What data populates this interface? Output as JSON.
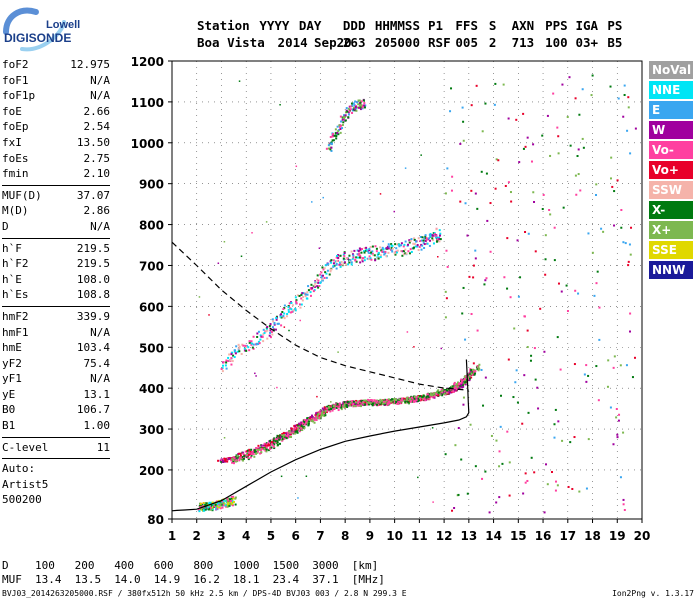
{
  "logo": {
    "line1": "Lowell",
    "line2": "DIGISONDE"
  },
  "header": {
    "labels": [
      "Station",
      "YYYY",
      "DAY",
      "DDD",
      "HHMMSS",
      "P1",
      "FFS",
      "S",
      "AXN",
      "PPS",
      "IGA",
      "PS"
    ],
    "values": [
      "Boa Vista",
      "2014",
      "Sep20",
      "263",
      "205000",
      "RSF",
      "005",
      "2",
      "713",
      "100",
      "03+",
      "B5"
    ]
  },
  "params": [
    {
      "type": "row",
      "label": "foF2",
      "value": "12.975"
    },
    {
      "type": "row",
      "label": "foF1",
      "value": "N/A"
    },
    {
      "type": "row",
      "label": "foF1p",
      "value": "N/A"
    },
    {
      "type": "row",
      "label": "foE",
      "value": "2.66"
    },
    {
      "type": "row",
      "label": "foEp",
      "value": "2.54"
    },
    {
      "type": "row",
      "label": "fxI",
      "value": "13.50"
    },
    {
      "type": "row",
      "label": "foEs",
      "value": "2.75"
    },
    {
      "type": "row",
      "label": "fmin",
      "value": "2.10"
    },
    {
      "type": "sep"
    },
    {
      "type": "row",
      "label": "MUF(D)",
      "value": "37.07"
    },
    {
      "type": "row",
      "label": "M(D)",
      "value": "2.86"
    },
    {
      "type": "row",
      "label": "D",
      "value": "N/A"
    },
    {
      "type": "sep"
    },
    {
      "type": "row",
      "label": "h`F",
      "value": "219.5"
    },
    {
      "type": "row",
      "label": "h`F2",
      "value": "219.5"
    },
    {
      "type": "row",
      "label": "h`E",
      "value": "108.0"
    },
    {
      "type": "row",
      "label": "h`Es",
      "value": "108.8"
    },
    {
      "type": "sep"
    },
    {
      "type": "row",
      "label": "hmF2",
      "value": "339.9"
    },
    {
      "type": "row",
      "label": "hmF1",
      "value": "N/A"
    },
    {
      "type": "row",
      "label": "hmE",
      "value": "103.4"
    },
    {
      "type": "row",
      "label": "yF2",
      "value": "75.4"
    },
    {
      "type": "row",
      "label": "yF1",
      "value": "N/A"
    },
    {
      "type": "row",
      "label": "yE",
      "value": "13.1"
    },
    {
      "type": "row",
      "label": "B0",
      "value": "106.7"
    },
    {
      "type": "row",
      "label": "B1",
      "value": "1.00"
    },
    {
      "type": "sep"
    },
    {
      "type": "row",
      "label": "C-level",
      "value": "11"
    },
    {
      "type": "sep"
    },
    {
      "type": "text",
      "text": "Auto:"
    },
    {
      "type": "text",
      "text": "Artist5"
    },
    {
      "type": "text",
      "text": "500200"
    }
  ],
  "legend": [
    {
      "label": "NoVal",
      "color": "#a0a0a0"
    },
    {
      "label": "NNE",
      "color": "#00e5f5"
    },
    {
      "label": "E",
      "color": "#3aa6f0"
    },
    {
      "label": "W",
      "color": "#a0009e"
    },
    {
      "label": "Vo-",
      "color": "#ff40a0"
    },
    {
      "label": "Vo+",
      "color": "#e8002a"
    },
    {
      "label": "SSW",
      "color": "#f5b3aa"
    },
    {
      "label": "X-",
      "color": "#007a10"
    },
    {
      "label": "X+",
      "color": "#7db850"
    },
    {
      "label": "SSE",
      "color": "#e0d800"
    },
    {
      "label": "NNW",
      "color": "#1a1a9a"
    }
  ],
  "chart_data": {
    "type": "scatter",
    "x_ticks": [
      "1",
      "2",
      "3",
      "4",
      "5",
      "6",
      "7",
      "8",
      "9",
      "10",
      "11",
      "12",
      "13",
      "14",
      "15",
      "16",
      "17",
      "18",
      "19",
      "20"
    ],
    "y_ticks": [
      "80",
      "200",
      "300",
      "400",
      "500",
      "600",
      "700",
      "800",
      "900",
      "1000",
      "1100",
      "1200"
    ],
    "xlim": [
      1,
      20
    ],
    "ylim": [
      80,
      1200
    ],
    "grid": true,
    "legend_position": "right",
    "traces": [
      {
        "mode": "O",
        "x": [
          2.9,
          3.5,
          4.2,
          5.0,
          5.6,
          6.0,
          6.5,
          7.0,
          7.5,
          8.0,
          8.5,
          9.0,
          9.5,
          10.0,
          10.5,
          11.0,
          11.5,
          12.0,
          12.3,
          12.6,
          12.9,
          13.1
        ],
        "y": [
          223,
          232,
          248,
          270,
          290,
          305,
          325,
          345,
          358,
          364,
          366,
          367,
          367,
          370,
          373,
          378,
          383,
          392,
          398,
          408,
          425,
          445
        ]
      },
      {
        "mode": "X",
        "x": [
          3.4,
          4.0,
          4.8,
          5.5,
          6.2,
          6.8,
          7.4,
          8.0,
          8.6,
          9.2,
          9.8,
          10.4,
          11.0,
          11.5,
          12.0,
          12.5,
          13.0,
          13.4
        ],
        "y": [
          225,
          236,
          255,
          280,
          305,
          330,
          352,
          362,
          366,
          367,
          368,
          372,
          378,
          385,
          395,
          410,
          432,
          458
        ]
      },
      {
        "mode": "Es",
        "x": [
          2.1,
          2.3,
          2.5,
          2.7,
          2.9,
          3.1,
          3.3,
          3.5
        ],
        "y": [
          110,
          112,
          113,
          115,
          118,
          121,
          124,
          128
        ]
      },
      {
        "mode": "multi",
        "x": [
          3.0,
          3.6,
          4.4,
          5.0,
          5.6,
          6.2,
          6.8,
          7.3,
          7.8,
          8.3,
          8.8,
          9.3,
          9.8,
          10.4,
          11.0,
          11.5,
          11.8
        ],
        "y": [
          455,
          490,
          520,
          550,
          590,
          620,
          660,
          695,
          715,
          725,
          730,
          733,
          738,
          745,
          755,
          768,
          782
        ]
      },
      {
        "mode": "multi2",
        "x": [
          7.3,
          7.6,
          7.9,
          8.2,
          8.5,
          8.8
        ],
        "y": [
          990,
          1025,
          1060,
          1085,
          1095,
          1100
        ]
      }
    ],
    "profile": {
      "x": [
        1.0,
        1.2,
        1.5,
        2.0,
        3.0,
        4.0,
        5.0,
        6.0,
        7.0,
        8.0,
        9.0,
        10.0,
        11.0,
        12.0,
        12.6,
        12.9,
        13.0,
        12.98,
        12.95,
        12.9
      ],
      "y": [
        100,
        101,
        102,
        104,
        125,
        160,
        195,
        225,
        250,
        270,
        283,
        295,
        305,
        315,
        322,
        330,
        340,
        365,
        410,
        470
      ]
    },
    "muf_curve": {
      "x": [
        1.0,
        2.0,
        3.0,
        4.0,
        5.0,
        6.0,
        7.0,
        8.0,
        9.0,
        10.0,
        11.0,
        12.0,
        13.0
      ],
      "y": [
        757,
        700,
        640,
        590,
        545,
        505,
        475,
        455,
        440,
        425,
        410,
        400,
        395
      ]
    }
  },
  "footer": {
    "distances": [
      "D",
      "100",
      "200",
      "400",
      "600",
      "800",
      "1000",
      "1500",
      "3000",
      "[km]"
    ],
    "muf": [
      "MUF",
      "13.4",
      "13.5",
      "14.0",
      "14.9",
      "16.2",
      "18.1",
      "23.4",
      "37.1",
      "[MHz]"
    ],
    "file_info": "BVJ03_2014263205000.RSF / 380fx512h 50 kHz 2.5 km / DPS-4D BVJ03 003 / 2.8 N 299.3 E",
    "version": "Ion2Png v. 1.3.17"
  }
}
